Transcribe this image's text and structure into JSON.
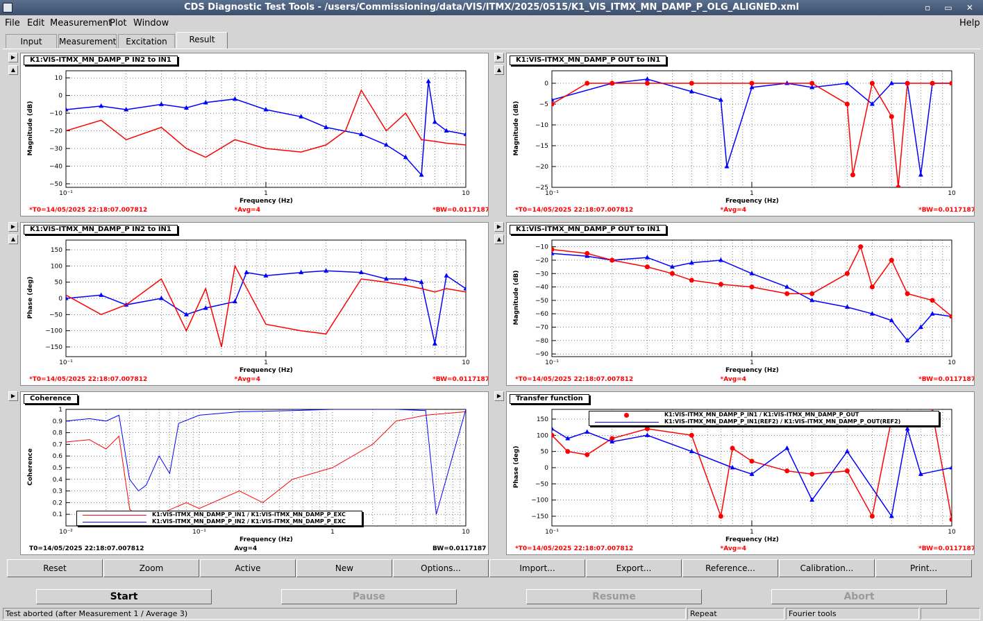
{
  "window": {
    "title": "CDS Diagnostic Test Tools - /users/Commissioning/data/VIS/ITMX/2025/0515/K1_VIS_ITMX_MN_DAMP_P_OLG_ALIGNED.xml",
    "controls": "▫ ▭ ✕"
  },
  "menu": {
    "file": "File",
    "edit": "Edit",
    "measurement": "Measurement",
    "plot": "Plot",
    "window": "Window",
    "help": "Help"
  },
  "tabs": [
    "Input",
    "Measurement",
    "Excitation",
    "Result"
  ],
  "panels": [
    {
      "title": "K1:VIS-ITMX_MN_DAMP_P IN2 to IN1",
      "ylabel": "Magnitude (dB)",
      "xlabel": "Frequency (Hz)",
      "xticks": [
        "10⁻¹",
        "1",
        "10"
      ],
      "yticks": [
        "10",
        "0",
        "−10",
        "−20",
        "−30",
        "−40",
        "−50"
      ],
      "footer": {
        "t0": "*T0=14/05/2025 22:18:07.007812",
        "avg": "*Avg=4",
        "bw": "*BW=0.0117187"
      }
    },
    {
      "title": "K1:VIS-ITMX_MN_DAMP_P OUT to IN1",
      "ylabel": "Magnitude (dB)",
      "xlabel": "Frequency (Hz)",
      "xticks": [
        "10⁻¹",
        "1",
        "10"
      ],
      "yticks": [
        "0",
        "−5",
        "−10",
        "−15",
        "−20",
        "−25"
      ],
      "footer": {
        "t0": "*T0=14/05/2025 22:18:07.007812",
        "avg": "*Avg=4",
        "bw": "*BW=0.0117187"
      }
    },
    {
      "title": "K1:VIS-ITMX_MN_DAMP_P IN2 to IN1",
      "ylabel": "Phase (deg)",
      "xlabel": "Frequency (Hz)",
      "xticks": [
        "10⁻¹",
        "1",
        "10"
      ],
      "yticks": [
        "150",
        "100",
        "50",
        "0",
        "−50",
        "−100",
        "−150"
      ],
      "footer": {
        "t0": "*T0=14/05/2025 22:18:07.007812",
        "avg": "*Avg=4",
        "bw": "*BW=0.0117187"
      }
    },
    {
      "title": "K1:VIS-ITMX_MN_DAMP_P OUT to IN1",
      "ylabel": "Magnitude (dB)",
      "xlabel": "Frequency (Hz)",
      "xticks": [
        "10⁻¹",
        "1",
        "10"
      ],
      "yticks": [
        "−10",
        "−20",
        "−30",
        "−40",
        "−50",
        "−60",
        "−70",
        "−80",
        "−90"
      ],
      "footer": {
        "t0": "*T0=14/05/2025 22:18:07.007812",
        "avg": "*Avg=4",
        "bw": "*BW=0.0117187"
      }
    },
    {
      "title": "Coherence",
      "ylabel": "Coherence",
      "xlabel": "Frequency (Hz)",
      "xticks": [
        "10⁻²",
        "10⁻¹",
        "1",
        "10"
      ],
      "yticks": [
        "1",
        "0.9",
        "0.8",
        "0.7",
        "0.6",
        "0.5",
        "0.4",
        "0.3",
        "0.2",
        "0.1"
      ],
      "footer": {
        "t0": "T0=14/05/2025 22:18:07.007812",
        "avg": "Avg=4",
        "bw": "BW=0.0117187"
      },
      "legend": [
        {
          "label": "K1:VIS-ITMX_MN_DAMP_P_IN1 / K1:VIS-ITMX_MN_DAMP_P_EXC",
          "color": "#ff0000"
        },
        {
          "label": "K1:VIS-ITMX_MN_DAMP_P_IN2 / K1:VIS-ITMX_MN_DAMP_P_EXC",
          "color": "#0000ff"
        }
      ]
    },
    {
      "title": "Transfer function",
      "ylabel": "Phase (deg)",
      "xlabel": "Frequency (Hz)",
      "xticks": [
        "10⁻¹",
        "1",
        "10"
      ],
      "yticks": [
        "150",
        "100",
        "50",
        "0",
        "−50",
        "−100",
        "−150"
      ],
      "footer": {
        "t0": "*T0=14/05/2025 22:18:07.007812",
        "avg": "*Avg=4",
        "bw": "*BW=0.0117187"
      },
      "legend": [
        {
          "label": "K1:VIS-ITMX_MN_DAMP_P_IN1 / K1:VIS-ITMX_MN_DAMP_P_OUT",
          "color": "#ff0000"
        },
        {
          "label": "K1:VIS-ITMX_MN_DAMP_P_IN1(REF2) / K1:VIS-ITMX_MN_DAMP_P_OUT(REF2)",
          "color": "#0000ff"
        }
      ]
    }
  ],
  "toolbar": [
    "Reset",
    "Zoom",
    "Active",
    "New",
    "Options...",
    "Import...",
    "Export...",
    "Reference...",
    "Calibration...",
    "Print..."
  ],
  "controls": {
    "start": "Start",
    "pause": "Pause",
    "resume": "Resume",
    "abort": "Abort"
  },
  "status": {
    "message": "Test aborted (after Measurement 1 / Average 3)",
    "repeat": "Repeat",
    "mode": "Fourier tools"
  },
  "colors": {
    "series_red": "#ff0000",
    "series_blue": "#0000ff",
    "footer_red": "#ff0000"
  },
  "chart_data": [
    {
      "type": "line",
      "title": "K1:VIS-ITMX_MN_DAMP_P IN2 to IN1",
      "xscale": "log",
      "xlim": [
        0.1,
        10
      ],
      "ylim": [
        -52,
        14
      ],
      "ylabel": "Magnitude (dB)",
      "xlabel": "Frequency (Hz)",
      "series": [
        {
          "color": "#0000ff",
          "x": [
            0.1,
            0.15,
            0.2,
            0.3,
            0.4,
            0.5,
            0.7,
            1.0,
            1.5,
            2.0,
            3.0,
            4.0,
            5.0,
            6.0,
            6.5,
            7.0,
            8.0,
            10.0
          ],
          "y": [
            -8,
            -6,
            -8,
            -5,
            -7,
            -4,
            -2,
            -8,
            -12,
            -18,
            -22,
            -28,
            -35,
            -45,
            8,
            -15,
            -20,
            -22
          ]
        },
        {
          "color": "#ff0000",
          "x": [
            0.1,
            0.15,
            0.2,
            0.3,
            0.4,
            0.5,
            0.7,
            1.0,
            1.5,
            2.0,
            2.5,
            3.0,
            4.0,
            5.0,
            6.0,
            7.0,
            8.0,
            10.0
          ],
          "y": [
            -20,
            -14,
            -25,
            -18,
            -30,
            -35,
            -25,
            -30,
            -32,
            -28,
            -20,
            3,
            -20,
            -10,
            -25,
            -26,
            -27,
            -28
          ]
        }
      ]
    },
    {
      "type": "line",
      "title": "K1:VIS-ITMX_MN_DAMP_P OUT to IN1",
      "xscale": "log",
      "xlim": [
        0.1,
        10
      ],
      "ylim": [
        -25,
        3
      ],
      "ylabel": "Magnitude (dB)",
      "xlabel": "Frequency (Hz)",
      "series": [
        {
          "color": "#0000ff",
          "x": [
            0.1,
            0.2,
            0.3,
            0.5,
            0.7,
            0.75,
            1.0,
            1.5,
            2.0,
            3.0,
            4.0,
            5.0,
            6.0,
            7.0,
            8.0,
            10.0
          ],
          "y": [
            -4,
            0,
            1,
            -2,
            -4,
            -20,
            -1,
            0,
            -1,
            0,
            -5,
            0,
            0,
            -22,
            0,
            0
          ]
        },
        {
          "color": "#ff0000",
          "x": [
            0.1,
            0.15,
            0.2,
            0.3,
            0.5,
            1.0,
            2.0,
            3.0,
            3.2,
            4.0,
            5.0,
            5.4,
            6.0,
            8.0,
            10.0
          ],
          "y": [
            -5,
            0,
            0,
            0,
            0,
            0,
            0,
            -5,
            -22,
            0,
            -8,
            -25,
            0,
            0,
            0
          ]
        }
      ]
    },
    {
      "type": "line",
      "title": "K1:VIS-ITMX_MN_DAMP_P IN2 to IN1",
      "xscale": "log",
      "xlim": [
        0.1,
        10
      ],
      "ylim": [
        -180,
        180
      ],
      "ylabel": "Phase (deg)",
      "xlabel": "Frequency (Hz)",
      "series": [
        {
          "color": "#0000ff",
          "x": [
            0.1,
            0.15,
            0.2,
            0.3,
            0.4,
            0.5,
            0.7,
            0.8,
            1.0,
            1.5,
            2.0,
            3.0,
            4.0,
            5.0,
            6.0,
            7.0,
            8.0,
            10.0
          ],
          "y": [
            0,
            10,
            -20,
            0,
            -50,
            -30,
            -10,
            80,
            70,
            80,
            85,
            80,
            60,
            60,
            50,
            -140,
            70,
            30
          ]
        },
        {
          "color": "#ff0000",
          "x": [
            0.1,
            0.15,
            0.2,
            0.3,
            0.4,
            0.5,
            0.6,
            0.7,
            1.0,
            1.5,
            2.0,
            3.0,
            4.0,
            5.0,
            6.0,
            7.0,
            8.0,
            10.0
          ],
          "y": [
            10,
            -50,
            -20,
            60,
            -100,
            30,
            -150,
            100,
            -80,
            -100,
            -110,
            60,
            50,
            40,
            30,
            20,
            30,
            20
          ]
        }
      ]
    },
    {
      "type": "line",
      "title": "K1:VIS-ITMX_MN_DAMP_P OUT to IN1",
      "xscale": "log",
      "xlim": [
        0.1,
        10
      ],
      "ylim": [
        -92,
        -5
      ],
      "ylabel": "Magnitude (dB)",
      "xlabel": "Frequency (Hz)",
      "series": [
        {
          "color": "#0000ff",
          "x": [
            0.1,
            0.15,
            0.2,
            0.3,
            0.4,
            0.5,
            0.7,
            1.0,
            1.5,
            2.0,
            3.0,
            4.0,
            5.0,
            6.0,
            7.0,
            8.0,
            10.0
          ],
          "y": [
            -15,
            -17,
            -20,
            -18,
            -25,
            -22,
            -20,
            -30,
            -40,
            -50,
            -55,
            -60,
            -65,
            -80,
            -70,
            -60,
            -62
          ]
        },
        {
          "color": "#ff0000",
          "x": [
            0.1,
            0.15,
            0.2,
            0.3,
            0.4,
            0.5,
            0.7,
            1.0,
            1.5,
            2.0,
            3.0,
            3.5,
            4.0,
            5.0,
            6.0,
            8.0,
            10.0
          ],
          "y": [
            -12,
            -15,
            -20,
            -25,
            -30,
            -35,
            -38,
            -40,
            -45,
            -45,
            -30,
            -10,
            -40,
            -20,
            -45,
            -50,
            -62
          ]
        }
      ]
    },
    {
      "type": "line",
      "title": "Coherence",
      "xscale": "log",
      "xlim": [
        0.01,
        10
      ],
      "ylim": [
        0,
        1
      ],
      "ylabel": "Coherence",
      "xlabel": "Frequency (Hz)",
      "series": [
        {
          "name": "K1:VIS-ITMX_MN_DAMP_P_IN1 / K1:VIS-ITMX_MN_DAMP_P_EXC",
          "color": "#ff0000",
          "x": [
            0.01,
            0.015,
            0.02,
            0.025,
            0.03,
            0.035,
            0.05,
            0.08,
            0.1,
            0.2,
            0.3,
            0.5,
            1.0,
            2.0,
            3.0,
            5.0,
            10.0
          ],
          "y": [
            0.72,
            0.74,
            0.66,
            0.77,
            0.15,
            0.05,
            0.1,
            0.2,
            0.15,
            0.3,
            0.2,
            0.4,
            0.5,
            0.7,
            0.9,
            0.95,
            0.98
          ]
        },
        {
          "name": "K1:VIS-ITMX_MN_DAMP_P_IN2 / K1:VIS-ITMX_MN_DAMP_P_EXC",
          "color": "#0000ff",
          "x": [
            0.01,
            0.015,
            0.02,
            0.025,
            0.03,
            0.035,
            0.04,
            0.05,
            0.06,
            0.07,
            0.1,
            0.2,
            0.5,
            1.0,
            3.0,
            5.0,
            6.0,
            10.0
          ],
          "y": [
            0.9,
            0.92,
            0.9,
            0.95,
            0.4,
            0.3,
            0.35,
            0.6,
            0.45,
            0.88,
            0.95,
            0.98,
            0.99,
            1.0,
            1.0,
            0.99,
            0.1,
            1.0
          ]
        }
      ]
    },
    {
      "type": "line",
      "title": "Transfer function",
      "xscale": "log",
      "xlim": [
        0.1,
        10
      ],
      "ylim": [
        -180,
        180
      ],
      "ylabel": "Phase (deg)",
      "xlabel": "Frequency (Hz)",
      "series": [
        {
          "name": "K1:VIS-ITMX_MN_DAMP_P_IN1 / K1:VIS-ITMX_MN_DAMP_P_OUT",
          "color": "#ff0000",
          "x": [
            0.1,
            0.12,
            0.15,
            0.2,
            0.3,
            0.5,
            0.7,
            0.8,
            1.0,
            1.5,
            2.0,
            3.0,
            4.0,
            5.0,
            8.0,
            10.0
          ],
          "y": [
            100,
            50,
            40,
            90,
            120,
            100,
            -150,
            60,
            20,
            -10,
            -20,
            -10,
            -150,
            150,
            170,
            -160
          ]
        },
        {
          "name": "K1:VIS-ITMX_MN_DAMP_P_IN1(REF2) / K1:VIS-ITMX_MN_DAMP_P_OUT(REF2)",
          "color": "#0000ff",
          "x": [
            0.1,
            0.12,
            0.15,
            0.2,
            0.3,
            0.5,
            0.8,
            1.0,
            1.5,
            2.0,
            3.0,
            5.0,
            6.0,
            7.0,
            10.0
          ],
          "y": [
            120,
            90,
            110,
            80,
            100,
            50,
            0,
            -20,
            60,
            -100,
            50,
            -150,
            120,
            -20,
            0
          ]
        }
      ]
    }
  ]
}
